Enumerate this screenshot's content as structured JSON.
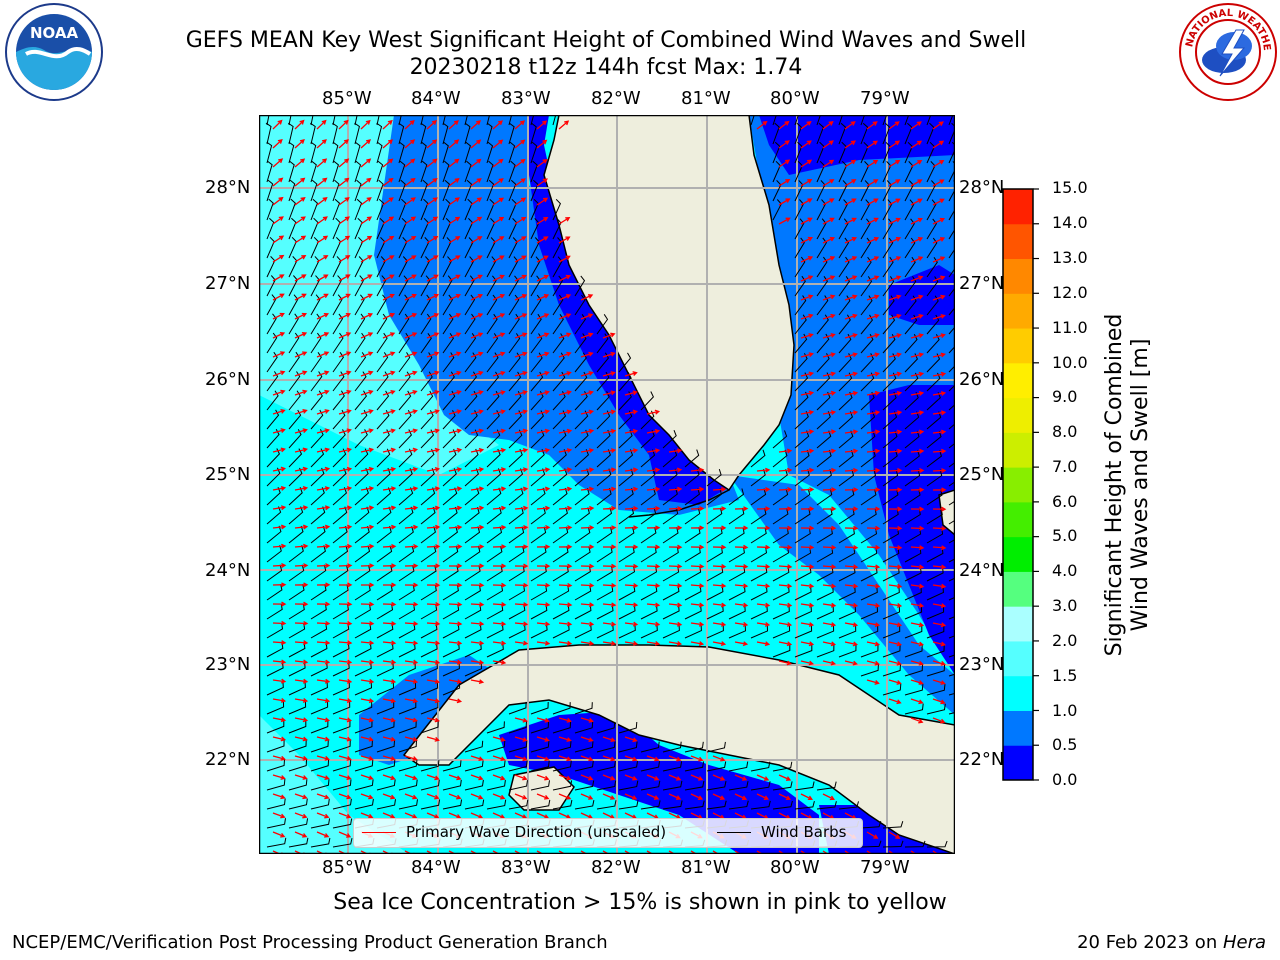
{
  "title": {
    "line1": "GEFS MEAN Key West Significant Height of Combined Wind Waves and Swell",
    "line2": "20230218 t12z 144h fcst   Max: 1.74"
  },
  "map": {
    "lon_ticks": [
      "85°W",
      "84°W",
      "83°W",
      "82°W",
      "81°W",
      "80°W",
      "79°W"
    ],
    "lat_ticks_left": [
      "28°N",
      "27°N",
      "26°N",
      "25°N",
      "24°N",
      "23°N",
      "22°N"
    ],
    "lat_ticks_right": [
      "28°N",
      "27°N",
      "26°N",
      "25°N",
      "24°N",
      "23°N",
      "22°N"
    ],
    "legend": {
      "wave_label": "Primary Wave Direction (unscaled)",
      "barb_label": "Wind Barbs",
      "wave_color": "#ff0000",
      "barb_color": "#000000"
    }
  },
  "colorbar": {
    "title_line1": "Significant Height of Combined",
    "title_line2": "Wind Waves and Swell [m]",
    "labels": [
      "15.0",
      "14.0",
      "13.0",
      "12.0",
      "11.0",
      "10.0",
      "9.0",
      "8.0",
      "7.0",
      "6.0",
      "5.0",
      "4.0",
      "3.0",
      "2.0",
      "1.5",
      "1.0",
      "0.5",
      "0.0"
    ],
    "colors_bottom_to_top": [
      "#0000ff",
      "#0078ff",
      "#00ffff",
      "#55ffff",
      "#aaffff",
      "#55ff7f",
      "#00ee00",
      "#44ee00",
      "#88ee00",
      "#ccee00",
      "#eeee00",
      "#ffee00",
      "#ffcc00",
      "#ffaa00",
      "#ff8800",
      "#ff5500",
      "#ff2200"
    ]
  },
  "colors": {
    "land": "#eeeedd",
    "grid": "#b0b0b0"
  },
  "sea_ice_note": "Sea Ice Concentration > 15% is shown in pink to yellow",
  "footer": {
    "left": "NCEP/EMC/Verification Post Processing Product Generation Branch",
    "date": "20 Feb 2023 on ",
    "machine": "Hera"
  },
  "logos": {
    "noaa_text": "NOAA",
    "nws_text": "NATIONAL WEATHER SERVICE"
  }
}
